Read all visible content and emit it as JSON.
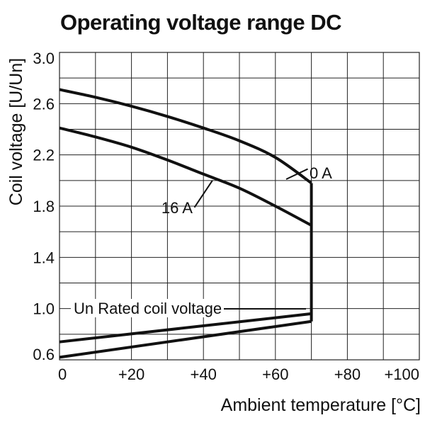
{
  "chart_data": {
    "type": "line",
    "title": "Operating voltage range DC",
    "xlabel": "Ambient temperature [°C]",
    "ylabel": "Coil voltage [U/Un]",
    "xlim": [
      0,
      100
    ],
    "ylim": [
      0.6,
      3.0
    ],
    "grid": true,
    "x_ticks": [
      "0",
      "+20",
      "+40",
      "+60",
      "+80",
      "+100"
    ],
    "y_ticks": [
      "0.6",
      "1.0",
      "1.4",
      "1.8",
      "2.2",
      "2.6",
      "3.0"
    ],
    "series": [
      {
        "name": "0 A",
        "x": [
          0,
          10,
          20,
          30,
          40,
          50,
          60,
          70
        ],
        "y": [
          2.71,
          2.65,
          2.58,
          2.5,
          2.41,
          2.31,
          2.18,
          1.98
        ]
      },
      {
        "name": "16 A",
        "x": [
          0,
          10,
          20,
          30,
          40,
          50,
          60,
          70
        ],
        "y": [
          2.41,
          2.34,
          2.26,
          2.16,
          2.05,
          1.94,
          1.8,
          1.65
        ]
      },
      {
        "name": "",
        "x": [
          0,
          70
        ],
        "y": [
          0.74,
          0.96
        ]
      },
      {
        "name": "",
        "x": [
          0,
          70
        ],
        "y": [
          0.62,
          0.9
        ]
      },
      {
        "name": "",
        "x": [
          70,
          70
        ],
        "y": [
          0.9,
          1.98
        ]
      }
    ],
    "annotations": [
      {
        "text": "0 A",
        "x": 66,
        "y": 2.06
      },
      {
        "text": "16 A",
        "x": 42,
        "y": 1.97
      },
      {
        "text": "Un Rated coil voltage",
        "x": 47,
        "y": 1.0
      }
    ]
  }
}
